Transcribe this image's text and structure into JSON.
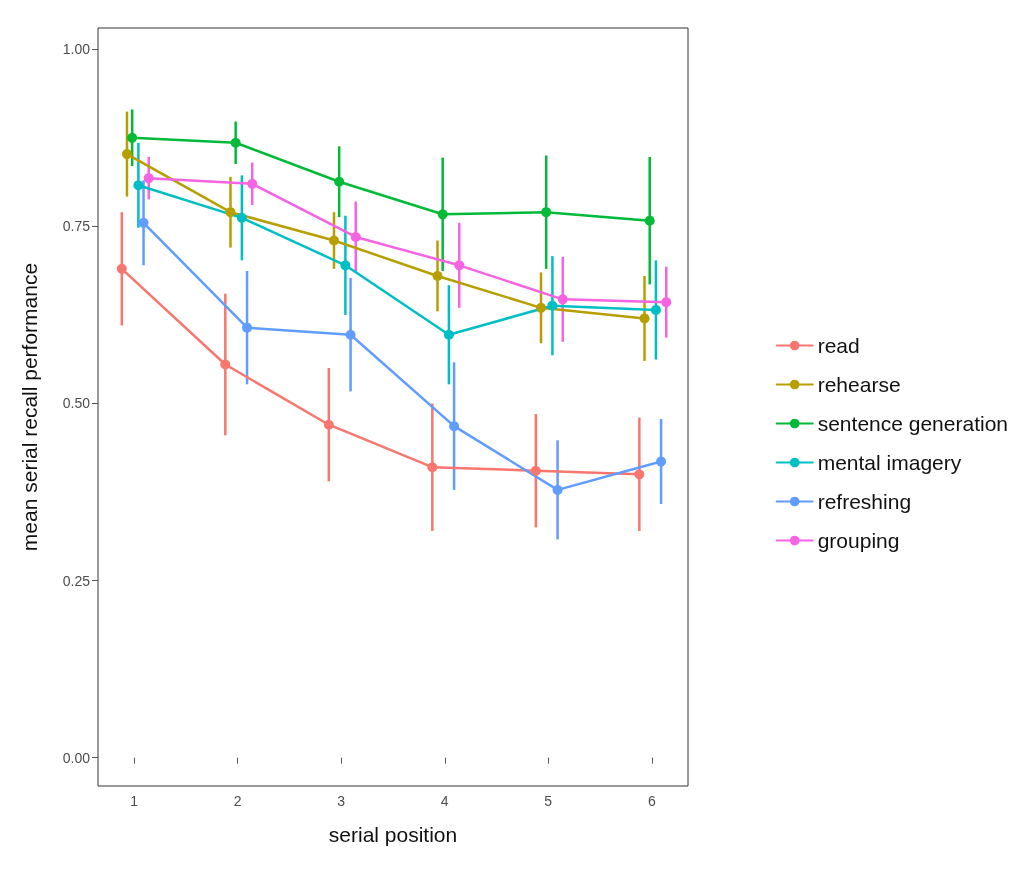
{
  "chart_data": {
    "type": "line",
    "xlabel": "serial position",
    "ylabel": "mean serial recall performance",
    "xlim": [
      0.65,
      6.35
    ],
    "xticks": [
      1,
      2,
      3,
      4,
      5,
      6
    ],
    "ylim": [
      -0.04,
      1.03
    ],
    "yticks": [
      {
        "value": 0,
        "label": "0.00"
      },
      {
        "value": 0.25,
        "label": "0.25"
      },
      {
        "value": 0.5,
        "label": "0.50"
      },
      {
        "value": 0.75,
        "label": "0.75"
      },
      {
        "value": 1,
        "label": "1.00"
      }
    ],
    "grid": false,
    "legend": "right",
    "marker": "circle",
    "line_style": "solid",
    "series": [
      {
        "name": "read",
        "color": "#f8766d",
        "x": [
          0.88,
          1.88,
          2.88,
          3.88,
          4.88,
          5.88
        ],
        "values": [
          0.69,
          0.555,
          0.47,
          0.41,
          0.405,
          0.4
        ],
        "errors": [
          0.08,
          0.1,
          0.08,
          0.09,
          0.08,
          0.08
        ]
      },
      {
        "name": "rehearse",
        "color": "#b79f00",
        "x": [
          0.93,
          1.93,
          2.93,
          3.93,
          4.93,
          5.93
        ],
        "values": [
          0.852,
          0.77,
          0.73,
          0.68,
          0.635,
          0.62
        ],
        "errors": [
          0.06,
          0.05,
          0.04,
          0.05,
          0.05,
          0.06
        ]
      },
      {
        "name": "sentence generation",
        "color": "#00ba38",
        "x": [
          0.98,
          1.98,
          2.98,
          3.98,
          4.98,
          5.98
        ],
        "values": [
          0.875,
          0.868,
          0.813,
          0.767,
          0.77,
          0.758
        ],
        "errors": [
          0.04,
          0.03,
          0.05,
          0.08,
          0.08,
          0.09
        ]
      },
      {
        "name": "mental imagery",
        "color": "#00bfc4",
        "x": [
          1.04,
          2.04,
          3.04,
          4.04,
          5.04,
          6.04
        ],
        "values": [
          0.808,
          0.762,
          0.695,
          0.597,
          0.638,
          0.632
        ],
        "errors": [
          0.06,
          0.06,
          0.07,
          0.07,
          0.07,
          0.07
        ]
      },
      {
        "name": "refreshing",
        "color": "#619cff",
        "x": [
          1.09,
          2.09,
          3.09,
          4.09,
          5.09,
          6.09
        ],
        "values": [
          0.755,
          0.607,
          0.597,
          0.468,
          0.378,
          0.418
        ],
        "errors": [
          0.06,
          0.08,
          0.08,
          0.09,
          0.07,
          0.06
        ]
      },
      {
        "name": "grouping",
        "color": "#f564e3",
        "x": [
          1.14,
          2.14,
          3.14,
          4.14,
          5.14,
          6.14
        ],
        "values": [
          0.818,
          0.81,
          0.735,
          0.695,
          0.647,
          0.643
        ],
        "errors": [
          0.03,
          0.03,
          0.05,
          0.06,
          0.06,
          0.05
        ]
      }
    ]
  }
}
